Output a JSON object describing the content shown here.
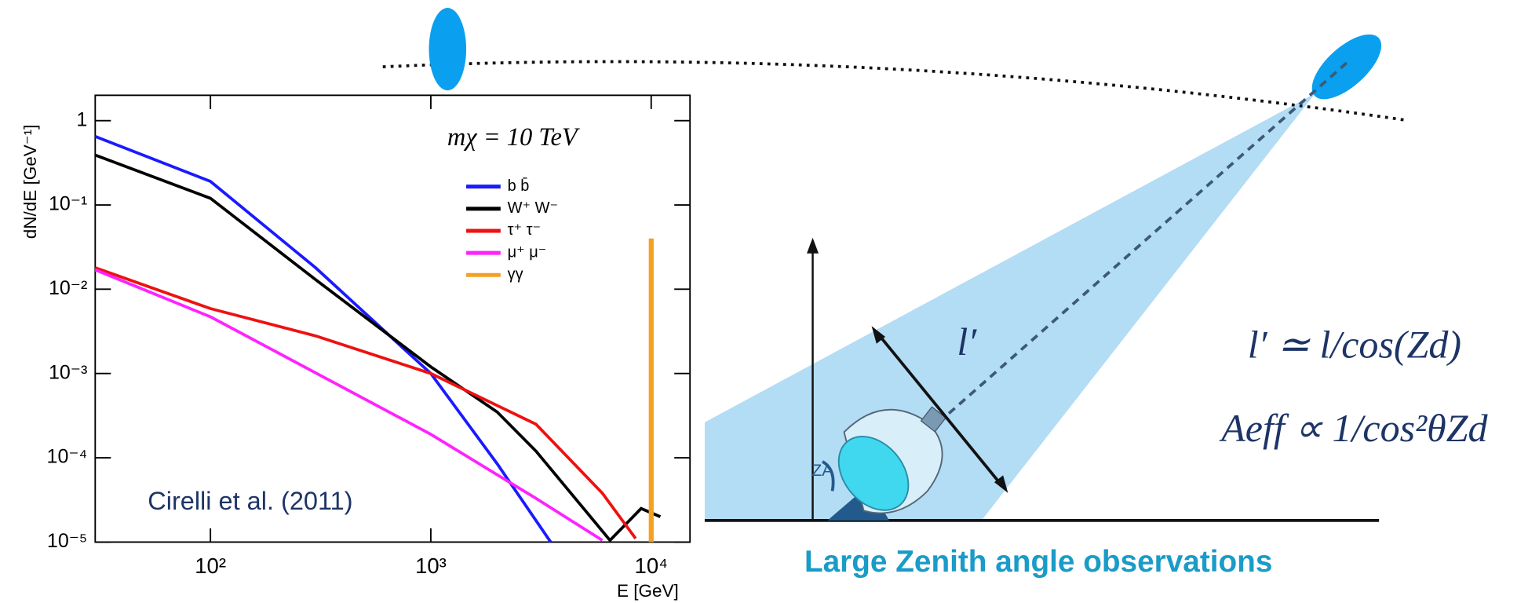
{
  "chart_data": {
    "type": "line",
    "x_label": "E [GeV]",
    "y_label": "dN/dE [GeV⁻¹]",
    "annotations": [
      "mχ = 10 TeV",
      "Cirelli et al. (2011)"
    ],
    "xscale": "log",
    "yscale": "log",
    "xlim": [
      30,
      15000
    ],
    "ylim": [
      1e-05,
      2
    ],
    "xticks": [
      {
        "value": 100,
        "label": "10²"
      },
      {
        "value": 1000,
        "label": "10³"
      },
      {
        "value": 10000,
        "label": "10⁴"
      }
    ],
    "yticks": [
      1,
      {
        "value": 0.1,
        "label": "10⁻¹"
      },
      {
        "value": 0.01,
        "label": "10⁻²"
      },
      {
        "value": 0.001,
        "label": "10⁻³"
      },
      {
        "value": 0.0001,
        "label": "10⁻⁴"
      },
      {
        "value": 1e-05,
        "label": "10⁻⁵"
      }
    ],
    "legend": "upper right",
    "series": [
      {
        "name": "b b̄",
        "color": "#1a1aff",
        "x": [
          30,
          100,
          300,
          1000,
          2000,
          3500
        ],
        "values": [
          0.65,
          0.19,
          0.018,
          0.001,
          8.5e-05,
          1e-05
        ]
      },
      {
        "name": "W⁺ W⁻",
        "color": "#000000",
        "x": [
          30,
          100,
          300,
          1000,
          2000,
          3000,
          6500,
          9000,
          11000
        ],
        "values": [
          0.39,
          0.12,
          0.013,
          0.0012,
          0.00035,
          0.00012,
          1.05e-05,
          2.5e-05,
          2e-05
        ]
      },
      {
        "name": "τ⁺ τ⁻",
        "color": "#ee1111",
        "x": [
          30,
          100,
          300,
          1000,
          3000,
          6000,
          8500
        ],
        "values": [
          0.018,
          0.0059,
          0.0028,
          0.001,
          0.00025,
          3.8e-05,
          1.1e-05
        ]
      },
      {
        "name": "μ⁺ μ⁻",
        "color": "#ff22ff",
        "x": [
          30,
          100,
          1000,
          3000,
          6000
        ],
        "values": [
          0.017,
          0.0047,
          0.00019,
          3.3e-05,
          1.05e-05
        ]
      },
      {
        "name": "γγ",
        "color": "#f5a020",
        "x": [
          10000,
          10000
        ],
        "values": [
          1e-05,
          0.04
        ]
      }
    ]
  },
  "diagram": {
    "path_label": "l′",
    "formula_1": "l′ ≃ l/cos(Zd)",
    "formula_2": "Aeff ∝ 1/cos²θZd",
    "angle_label": "ZA",
    "caption": "Large Zenith angle observations"
  }
}
